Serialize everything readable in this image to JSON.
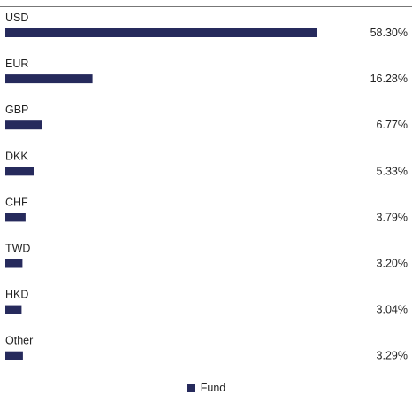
{
  "chart_data": {
    "type": "bar",
    "orientation": "horizontal",
    "categories": [
      "USD",
      "EUR",
      "GBP",
      "DKK",
      "CHF",
      "TWD",
      "HKD",
      "Other"
    ],
    "series": [
      {
        "name": "Fund",
        "values": [
          58.3,
          16.28,
          6.77,
          5.33,
          3.79,
          3.2,
          3.04,
          3.29
        ]
      }
    ],
    "value_labels": [
      "58.30%",
      "16.28%",
      "6.77%",
      "5.33%",
      "3.79%",
      "3.20%",
      "3.04%",
      "3.29%"
    ],
    "unit": "%",
    "legend": {
      "position": "bottom-center"
    },
    "grid": false,
    "bar_color": "#262a5c"
  }
}
